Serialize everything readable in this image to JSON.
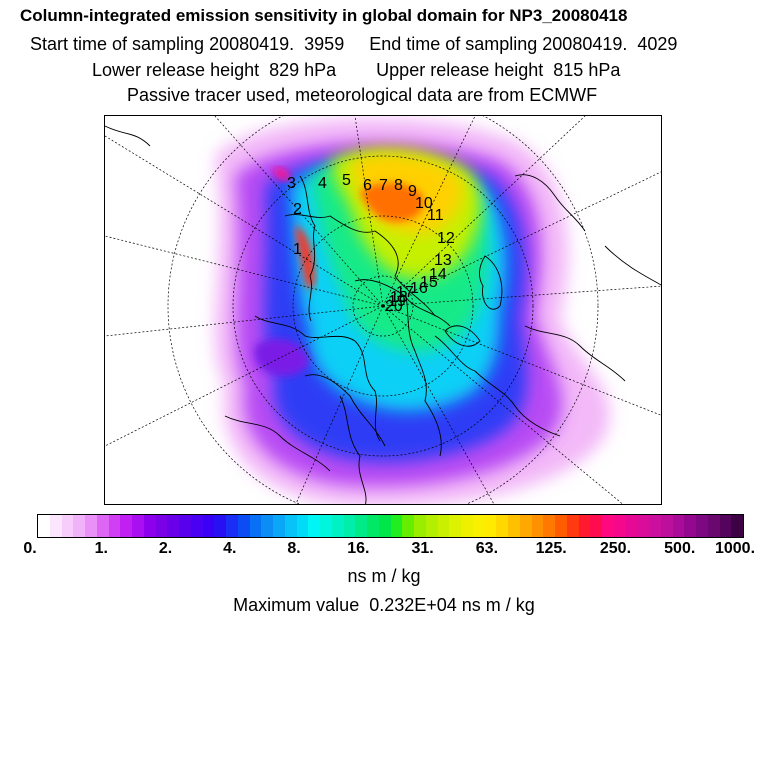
{
  "header": {
    "title": "Column-integrated emission sensitivity in global domain for NP3_20080418",
    "line2": "Start time of sampling 20080419.  3959     End time of sampling 20080419.  4029",
    "line3": "Lower release height  829 hPa        Upper release height  815 hPa",
    "line4": "Passive tracer used, meteorological data are from ECMWF"
  },
  "chart_data": {
    "type": "heatmap",
    "projection": "polar stereographic (north)",
    "title": "Column-integrated emission sensitivity in global domain for NP3_20080418",
    "colorbar": {
      "unit": "ns m / kg",
      "scale": "logarithmic",
      "tick_labels": [
        "0.",
        "1.",
        "2.",
        "4.",
        "8.",
        "16.",
        "31.",
        "63.",
        "125.",
        "250.",
        "500.",
        "1000."
      ],
      "colors": [
        "#ffffff",
        "#fbe6fd",
        "#f6cdfb",
        "#f0b2f9",
        "#e991f7",
        "#dd66f5",
        "#d03ff3",
        "#c21ff2",
        "#a90ff0",
        "#8c00ee",
        "#7a00e6",
        "#6a00ea",
        "#5800ee",
        "#4a00f3",
        "#3a00f5",
        "#2810f5",
        "#1a2ef5",
        "#0c4cf5",
        "#0870f5",
        "#0c8cf5",
        "#0aa6f7",
        "#08c2f8",
        "#00dcf8",
        "#00f5f5",
        "#00f5dd",
        "#00f2c4",
        "#00eeaa",
        "#00ea88",
        "#00e866",
        "#00e648",
        "#20ee20",
        "#66ee00",
        "#99ee00",
        "#b4ee00",
        "#c8f000",
        "#ddf200",
        "#eef000",
        "#faef00",
        "#ffea00",
        "#ffd800",
        "#ffc000",
        "#ffa800",
        "#ff9000",
        "#ff7800",
        "#ff5c00",
        "#ff3a10",
        "#ff1a30",
        "#ff0c50",
        "#ff0880",
        "#f5088c",
        "#e80896",
        "#da0c9a",
        "#cc109e",
        "#bc109c",
        "#a80c98",
        "#940890",
        "#7e0882",
        "#6a0870",
        "#54045c",
        "#3c0244"
      ]
    },
    "max_value_label": "Maximum value  0.232E+04 ns m / kg",
    "trajectory_labels": [
      "1",
      "2",
      "3",
      "4",
      "5",
      "6",
      "7",
      "8",
      "9",
      "10",
      "11",
      "12",
      "13",
      "14",
      "15",
      "16",
      "17",
      "18",
      "19",
      "20"
    ]
  }
}
